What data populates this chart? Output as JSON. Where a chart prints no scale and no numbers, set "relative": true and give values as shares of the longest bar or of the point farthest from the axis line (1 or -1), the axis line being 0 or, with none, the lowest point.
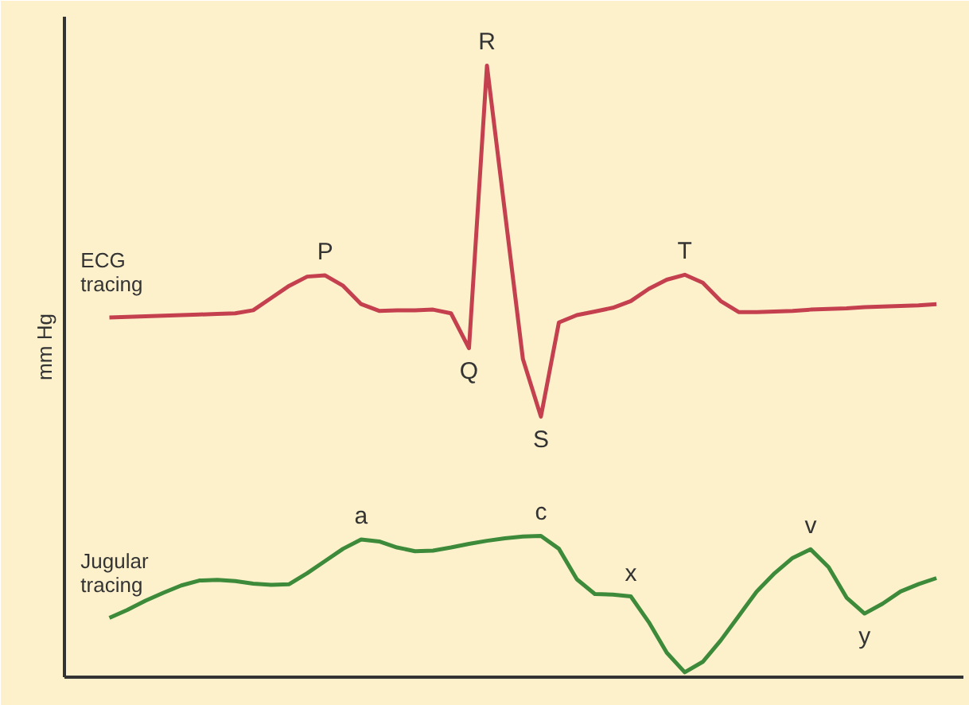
{
  "chart_data": {
    "type": "line",
    "relative": true,
    "ylabel": "mm Hg",
    "marker": "none",
    "line_style": "solid",
    "categories": [
      null,
      null,
      null,
      null,
      null,
      null,
      null,
      null,
      null,
      null,
      null,
      null,
      null,
      null,
      null,
      null,
      null,
      null,
      null,
      null,
      null,
      null,
      null,
      null,
      null,
      null,
      null,
      null,
      null,
      null,
      null,
      null,
      null,
      null,
      null,
      null,
      null,
      null,
      null,
      null,
      null,
      null,
      null,
      null,
      null,
      null,
      null,
      null,
      null,
      null
    ],
    "series": [
      {
        "name": "ECG tracing",
        "color": "#c4404f",
        "values": [
          null,
          null,
          0.588,
          0.589,
          0.59,
          0.591,
          0.592,
          0.593,
          0.594,
          0.595,
          0.6,
          0.62,
          0.64,
          0.655,
          0.657,
          0.64,
          0.61,
          0.599,
          0.6,
          0.6,
          0.601,
          0.595,
          0.538,
          1,
          0.76,
          0.52,
          0.426,
          0.58,
          0.592,
          0.598,
          0.604,
          0.615,
          0.635,
          0.65,
          0.658,
          0.645,
          0.615,
          0.597,
          0.597,
          0.598,
          0.599,
          0.601,
          0.602,
          0.603,
          0.605,
          0.606,
          0.607,
          0.608,
          0.61,
          null
        ]
      },
      {
        "name": "Jugular tracing",
        "color": "#3d8a3a",
        "values": [
          null,
          null,
          0.097,
          0.11,
          0.125,
          0.138,
          0.15,
          0.158,
          0.159,
          0.157,
          0.153,
          0.151,
          0.152,
          0.17,
          0.19,
          0.21,
          0.225,
          0.222,
          0.212,
          0.206,
          0.207,
          0.212,
          0.218,
          0.223,
          0.227,
          0.23,
          0.231,
          0.21,
          0.16,
          0.136,
          0.135,
          0.132,
          0.09,
          0.04,
          0.008,
          0.025,
          0.06,
          0.1,
          0.14,
          0.17,
          0.195,
          0.209,
          0.18,
          0.13,
          0.104,
          0.12,
          0.14,
          0.152,
          0.162,
          null
        ]
      }
    ],
    "annotations": [
      {
        "text": "P",
        "y": 0.657
      },
      {
        "text": "Q",
        "y": 0.538
      },
      {
        "text": "R",
        "y": 1
      },
      {
        "text": "S",
        "y": 0.426
      },
      {
        "text": "T",
        "y": 0.658
      },
      {
        "text": "a",
        "y": 0.225
      },
      {
        "text": "c",
        "y": 0.231
      },
      {
        "text": "x",
        "y": 0.132
      },
      {
        "text": "v",
        "y": 0.209
      },
      {
        "text": "y",
        "y": 0.104
      }
    ]
  }
}
